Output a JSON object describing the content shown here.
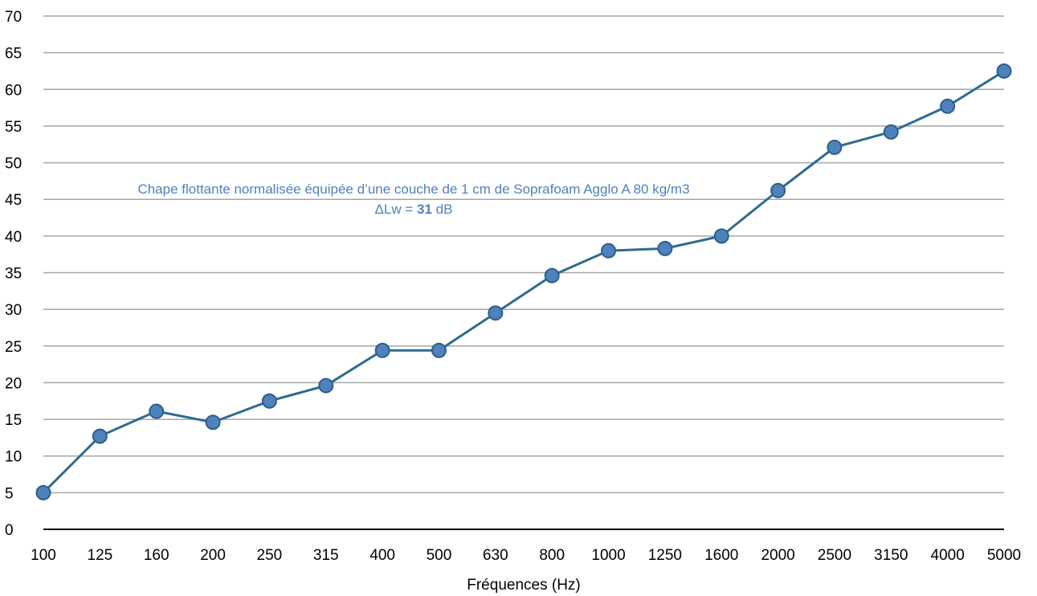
{
  "chart_data": {
    "type": "line",
    "title": "",
    "xlabel": "Fréquences (Hz)",
    "ylabel": "",
    "categories": [
      "100",
      "125",
      "160",
      "200",
      "250",
      "315",
      "400",
      "500",
      "630",
      "800",
      "1000",
      "1250",
      "1600",
      "2000",
      "2500",
      "3150",
      "4000",
      "5000"
    ],
    "series": [
      {
        "values": [
          5.0,
          12.7,
          16.1,
          14.6,
          17.5,
          19.6,
          24.4,
          24.4,
          29.5,
          34.6,
          38.0,
          38.3,
          40.0,
          46.2,
          52.1,
          54.2,
          57.7,
          62.5
        ]
      }
    ],
    "ylim": [
      0,
      70
    ],
    "yticks": [
      0,
      5,
      10,
      15,
      20,
      25,
      30,
      35,
      40,
      45,
      50,
      55,
      60,
      65,
      70
    ],
    "grid": true,
    "legend": "none",
    "annotation": {
      "line1": "Chape flottante normalisée équipée d’une couche de 1 cm de Soprafoam Agglo A 80 kg/m3",
      "line2_prefix": "ΔLw  = ",
      "line2_value": "31",
      "line2_unit": " dB"
    },
    "colors": {
      "line": "#2e6b91",
      "marker_fill": "#4f81bd",
      "marker_stroke": "#2e5f8a",
      "gridline": "#a6a6a6",
      "axis": "#000000",
      "annotation": "#4f81bd"
    }
  }
}
